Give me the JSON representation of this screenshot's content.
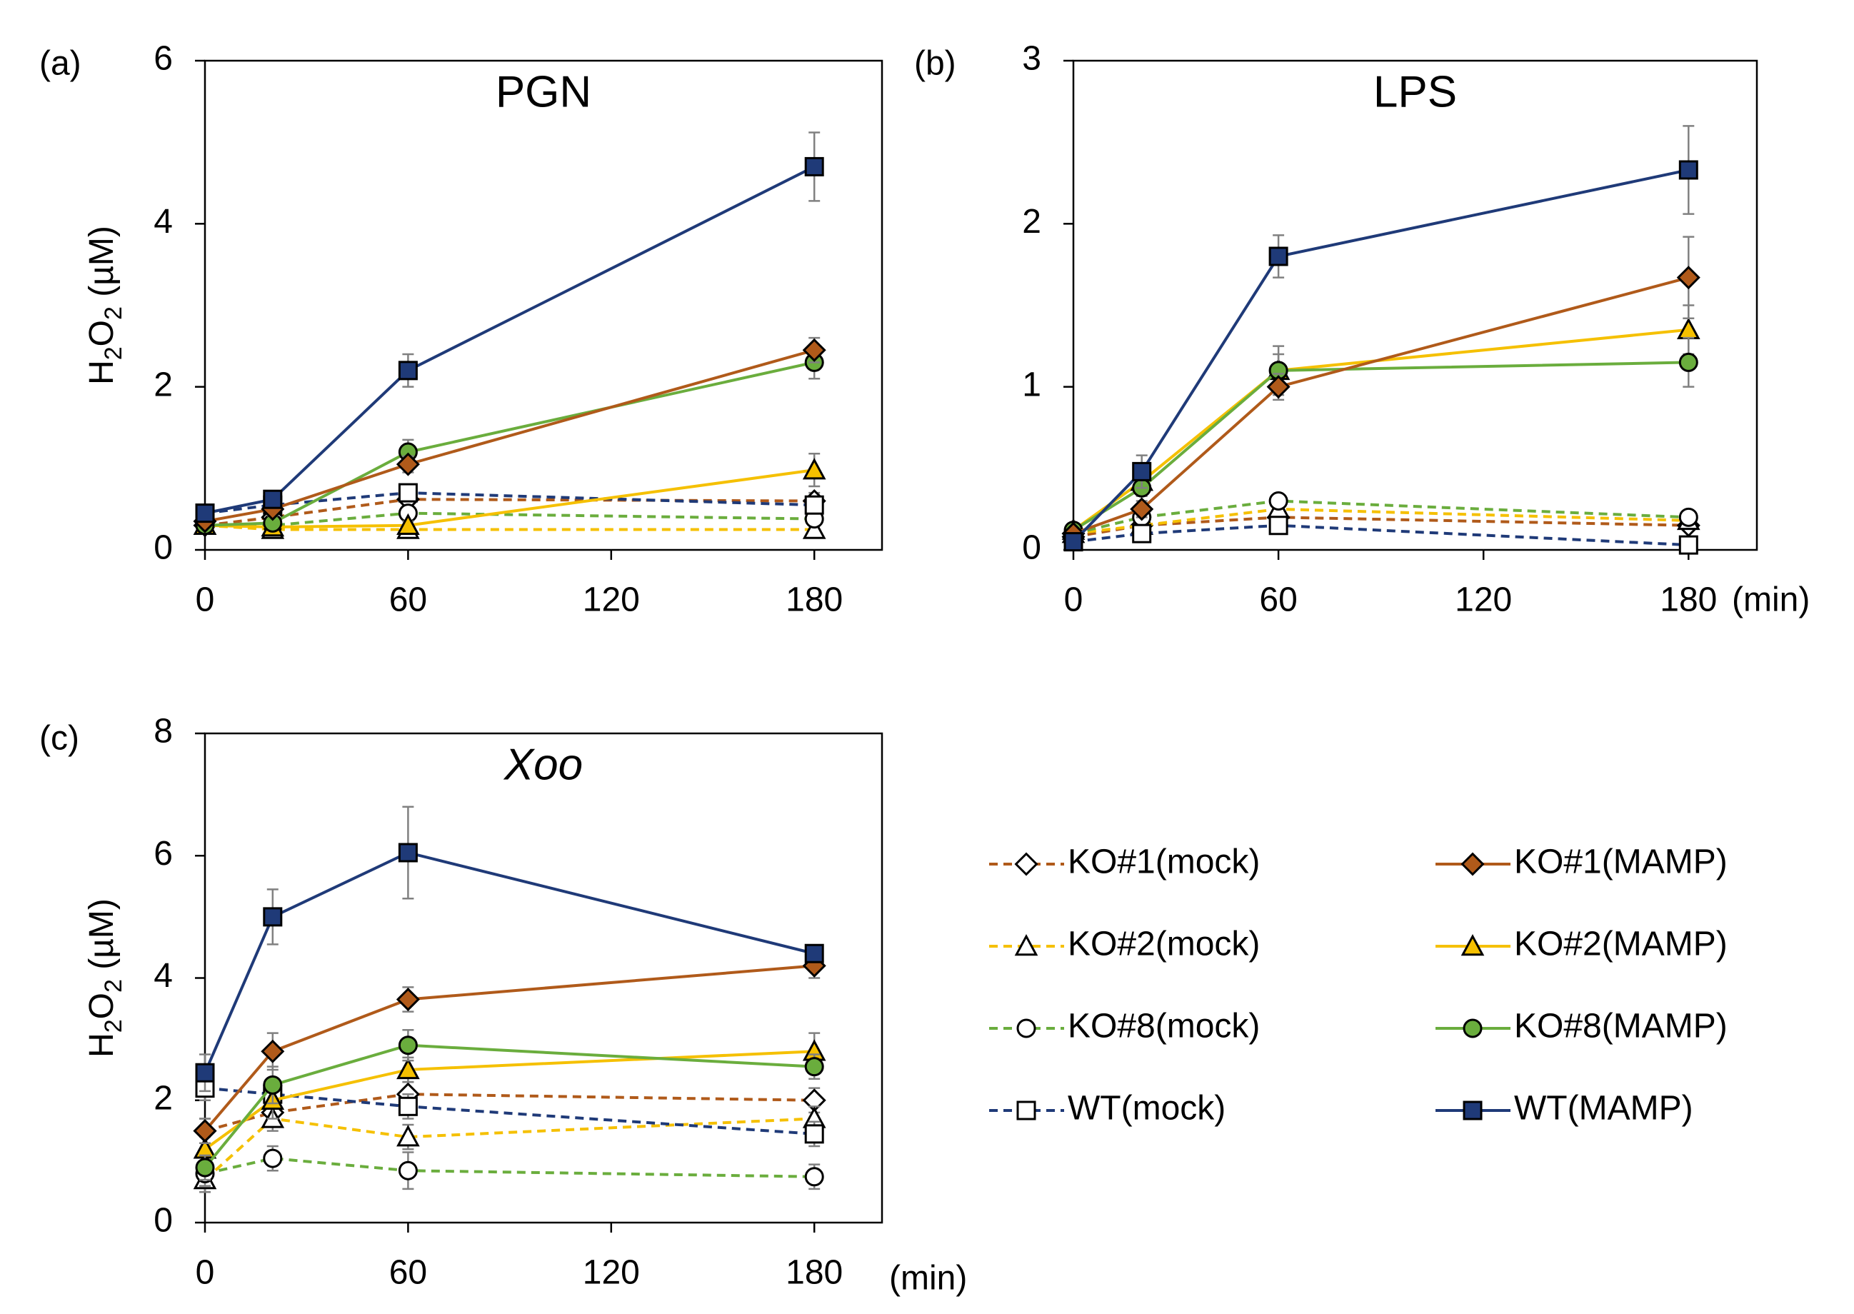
{
  "time_unit_label": "(min)",
  "colors": {
    "KO1": "#B05A1A",
    "KO2": "#F5C000",
    "KO8": "#6AAD3D",
    "WT": "#1F3A78",
    "error_bar": "#808080"
  },
  "legend": [
    {
      "label": "KO#1(mock)",
      "color": "#B05A1A",
      "marker": "diamond",
      "filled": false,
      "dashed": true
    },
    {
      "label": "KO#1(MAMP)",
      "color": "#B05A1A",
      "marker": "diamond",
      "filled": true,
      "dashed": false
    },
    {
      "label": "KO#2(mock)",
      "color": "#F5C000",
      "marker": "triangle",
      "filled": false,
      "dashed": true
    },
    {
      "label": "KO#2(MAMP)",
      "color": "#F5C000",
      "marker": "triangle",
      "filled": true,
      "dashed": false
    },
    {
      "label": "KO#8(mock)",
      "color": "#6AAD3D",
      "marker": "circle",
      "filled": false,
      "dashed": true
    },
    {
      "label": "KO#8(MAMP)",
      "color": "#6AAD3D",
      "marker": "circle",
      "filled": true,
      "dashed": false
    },
    {
      "label": "WT(mock)",
      "color": "#1F3A78",
      "marker": "square",
      "filled": false,
      "dashed": true
    },
    {
      "label": "WT(MAMP)",
      "color": "#1F3A78",
      "marker": "square",
      "filled": true,
      "dashed": false
    }
  ],
  "chart_data": [
    {
      "type": "line",
      "panel_label": "(a)",
      "title": "PGN",
      "title_italic": false,
      "ylabel": {
        "main": "H",
        "sub1": "2",
        "mid": "O",
        "sub2": "2",
        "unit": " (µM)"
      },
      "xlabel": "",
      "x": [
        0,
        20,
        60,
        180
      ],
      "xticks": [
        0,
        60,
        120,
        180
      ],
      "xlim": [
        0,
        200
      ],
      "yticks": [
        0,
        2,
        4,
        6
      ],
      "ylim": [
        0,
        6
      ],
      "series": [
        {
          "name": "KO#1(mock)",
          "values": [
            0.3,
            0.4,
            0.62,
            0.6
          ],
          "err": [
            0.05,
            0.05,
            0.08,
            0.1
          ]
        },
        {
          "name": "KO#2(mock)",
          "values": [
            0.3,
            0.25,
            0.25,
            0.25
          ],
          "err": [
            0.05,
            0.05,
            0.05,
            0.05
          ]
        },
        {
          "name": "KO#8(mock)",
          "values": [
            0.3,
            0.3,
            0.45,
            0.38
          ],
          "err": [
            0.05,
            0.05,
            0.08,
            0.08
          ]
        },
        {
          "name": "WT(mock)",
          "values": [
            0.45,
            0.55,
            0.7,
            0.55
          ],
          "err": [
            0.05,
            0.05,
            0.08,
            0.08
          ]
        },
        {
          "name": "KO#1(MAMP)",
          "values": [
            0.35,
            0.5,
            1.05,
            2.45
          ],
          "err": [
            0.05,
            0.08,
            0.1,
            0.15
          ]
        },
        {
          "name": "KO#2(MAMP)",
          "values": [
            0.3,
            0.28,
            0.3,
            0.98
          ],
          "err": [
            0.05,
            0.05,
            0.05,
            0.2
          ]
        },
        {
          "name": "KO#8(MAMP)",
          "values": [
            0.3,
            0.33,
            1.2,
            2.3
          ],
          "err": [
            0.05,
            0.05,
            0.15,
            0.2
          ]
        },
        {
          "name": "WT(MAMP)",
          "values": [
            0.45,
            0.62,
            2.2,
            4.7
          ],
          "err": [
            0.05,
            0.08,
            0.2,
            0.42
          ]
        }
      ]
    },
    {
      "type": "line",
      "panel_label": "(b)",
      "title": "LPS",
      "title_italic": false,
      "ylabel": null,
      "xlabel": "(min)",
      "x": [
        0,
        20,
        60,
        180
      ],
      "xticks": [
        0,
        60,
        120,
        180
      ],
      "xlim": [
        0,
        200
      ],
      "yticks": [
        0,
        1,
        2,
        3
      ],
      "ylim": [
        0,
        3
      ],
      "series": [
        {
          "name": "KO#1(mock)",
          "values": [
            0.08,
            0.15,
            0.2,
            0.15
          ],
          "err": [
            0.02,
            0.02,
            0.03,
            0.03
          ]
        },
        {
          "name": "KO#2(mock)",
          "values": [
            0.1,
            0.15,
            0.25,
            0.18
          ],
          "err": [
            0.02,
            0.02,
            0.03,
            0.03
          ]
        },
        {
          "name": "KO#8(mock)",
          "values": [
            0.1,
            0.2,
            0.3,
            0.2
          ],
          "err": [
            0.02,
            0.03,
            0.03,
            0.03
          ]
        },
        {
          "name": "WT(mock)",
          "values": [
            0.05,
            0.1,
            0.15,
            0.03
          ],
          "err": [
            0.01,
            0.02,
            0.03,
            0.01
          ]
        },
        {
          "name": "KO#1(MAMP)",
          "values": [
            0.1,
            0.25,
            1.0,
            1.67
          ],
          "err": [
            0.02,
            0.05,
            0.08,
            0.25
          ]
        },
        {
          "name": "KO#2(MAMP)",
          "values": [
            0.12,
            0.42,
            1.1,
            1.35
          ],
          "err": [
            0.02,
            0.05,
            0.1,
            0.15
          ]
        },
        {
          "name": "KO#8(MAMP)",
          "values": [
            0.12,
            0.38,
            1.1,
            1.15
          ],
          "err": [
            0.02,
            0.05,
            0.15,
            0.15
          ]
        },
        {
          "name": "WT(MAMP)",
          "values": [
            0.05,
            0.48,
            1.8,
            2.33
          ],
          "err": [
            0.02,
            0.1,
            0.13,
            0.27
          ]
        }
      ]
    },
    {
      "type": "line",
      "panel_label": "(c)",
      "title": "Xoo",
      "title_italic": true,
      "ylabel": {
        "main": "H",
        "sub1": "2",
        "mid": "O",
        "sub2": "2",
        "unit": " (µM)"
      },
      "xlabel": "(min)",
      "x": [
        0,
        20,
        60,
        180
      ],
      "xticks": [
        0,
        60,
        120,
        180
      ],
      "xlim": [
        0,
        200
      ],
      "yticks": [
        0,
        2,
        4,
        6,
        8
      ],
      "ylim": [
        0,
        8
      ],
      "series": [
        {
          "name": "KO#1(mock)",
          "values": [
            1.5,
            1.8,
            2.1,
            2.0
          ],
          "err": [
            0.2,
            0.2,
            0.2,
            0.2
          ]
        },
        {
          "name": "KO#2(mock)",
          "values": [
            0.7,
            1.7,
            1.4,
            1.7
          ],
          "err": [
            0.2,
            0.2,
            0.2,
            0.2
          ]
        },
        {
          "name": "KO#8(mock)",
          "values": [
            0.8,
            1.05,
            0.85,
            0.75
          ],
          "err": [
            0.2,
            0.2,
            0.3,
            0.2
          ]
        },
        {
          "name": "WT(mock)",
          "values": [
            2.2,
            2.1,
            1.9,
            1.45
          ],
          "err": [
            0.2,
            0.2,
            0.2,
            0.2
          ]
        },
        {
          "name": "KO#1(MAMP)",
          "values": [
            1.5,
            2.8,
            3.65,
            4.2
          ],
          "err": [
            0.2,
            0.3,
            0.2,
            0.2
          ]
        },
        {
          "name": "KO#2(MAMP)",
          "values": [
            1.2,
            2.0,
            2.5,
            2.8
          ],
          "err": [
            0.2,
            0.3,
            0.2,
            0.3
          ]
        },
        {
          "name": "KO#8(MAMP)",
          "values": [
            0.9,
            2.25,
            2.9,
            2.55
          ],
          "err": [
            0.2,
            0.3,
            0.25,
            0.2
          ]
        },
        {
          "name": "WT(MAMP)",
          "values": [
            2.45,
            5.0,
            6.05,
            4.4
          ],
          "err": [
            0.3,
            0.45,
            0.75,
            0.1
          ]
        }
      ]
    }
  ]
}
